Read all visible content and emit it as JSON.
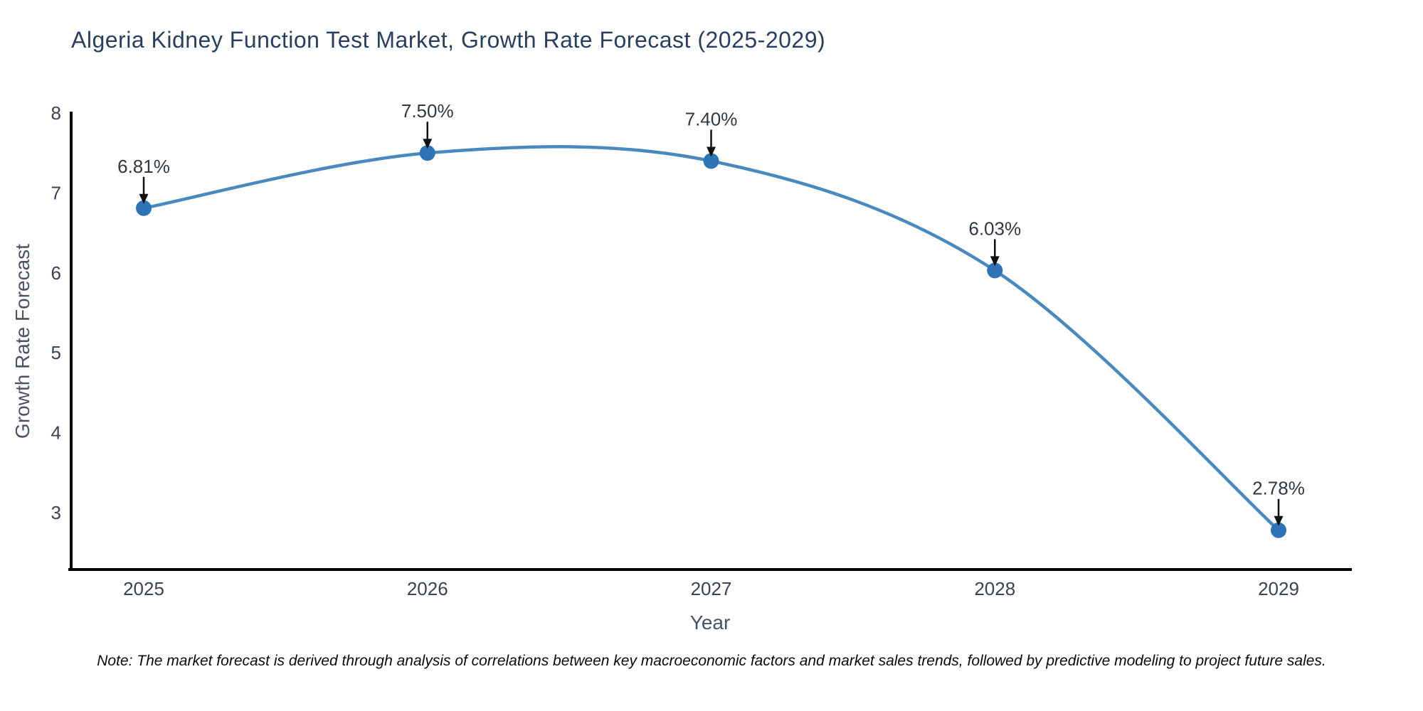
{
  "chart_data": {
    "type": "line",
    "title": "Algeria Kidney Function Test Market, Growth Rate Forecast (2025-2029)",
    "xlabel": "Year",
    "ylabel": "Growth Rate Forecast",
    "categories": [
      "2025",
      "2026",
      "2027",
      "2028",
      "2029"
    ],
    "series": [
      {
        "name": "Growth Rate Forecast",
        "values": [
          6.81,
          7.5,
          7.4,
          6.03,
          2.78
        ]
      }
    ],
    "point_labels": [
      "6.81%",
      "7.50%",
      "7.40%",
      "6.03%",
      "2.78%"
    ],
    "yticks": [
      8,
      7,
      6,
      5,
      4,
      3
    ],
    "ylim": [
      2.29,
      8
    ],
    "line_shape": "spline",
    "grid": false,
    "legend_position": "none",
    "markers": true,
    "annotation_arrows": true,
    "colors": {
      "line": "#4a89c0",
      "marker": "#2e73b5",
      "axis_line": "#000000",
      "title_text": "#2a3f5f",
      "tick_text": "#3b4352",
      "axis_label_text": "#4a5264",
      "annotation_text": "#32383f",
      "arrow": "#101010",
      "background": "#ffffff"
    },
    "note": "Note: The market forecast is derived through analysis of correlations between key macroeconomic factors and market sales trends, followed by predictive modeling to project future sales."
  }
}
